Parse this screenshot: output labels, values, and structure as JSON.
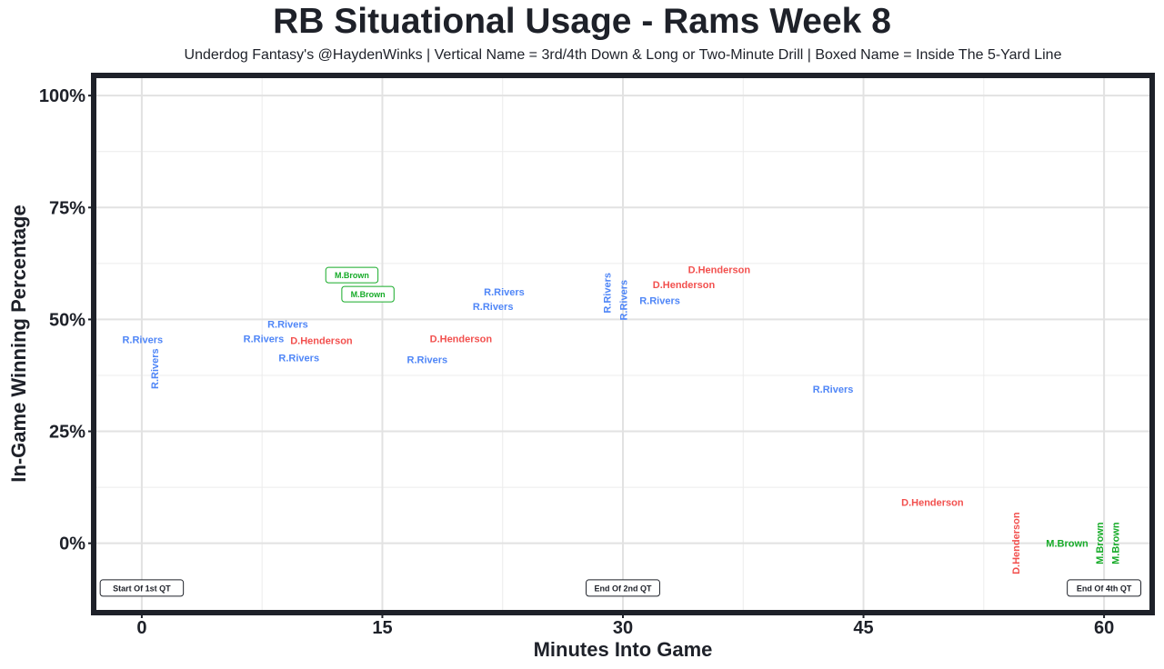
{
  "chart_data": {
    "type": "scatter",
    "title": "RB Situational Usage - Rams Week 8",
    "subtitle": "Underdog Fantasy's @HaydenWinks | Vertical Name = 3rd/4th Down & Long or Two-Minute Drill | Boxed Name = Inside The 5-Yard Line",
    "xlabel": "Minutes Into Game",
    "ylabel": "In-Game Winning Percentage",
    "xlim": [
      -3,
      63
    ],
    "ylim": [
      -15.5,
      104.5
    ],
    "xticks": [
      0,
      15,
      30,
      45,
      60
    ],
    "xtick_labels": [
      "0",
      "15",
      "30",
      "45",
      "60"
    ],
    "yticks": [
      0,
      25,
      50,
      75,
      100
    ],
    "ytick_labels": [
      "0%",
      "25%",
      "50%",
      "75%",
      "100%"
    ],
    "grid": true,
    "colors": {
      "R.Rivers": "#4f86f7",
      "D.Henderson": "#f2504e",
      "M.Brown": "#16ab28"
    },
    "points": [
      {
        "name": "R.Rivers",
        "x": 0.05,
        "y": 45.5,
        "style": "normal"
      },
      {
        "name": "R.Rivers",
        "x": 0.8,
        "y": 40.2,
        "style": "vertical"
      },
      {
        "name": "M.Brown",
        "x": 13.1,
        "y": 60.0,
        "style": "boxed"
      },
      {
        "name": "M.Brown",
        "x": 14.1,
        "y": 59.4,
        "style": "boxed"
      },
      {
        "name": "R.Rivers",
        "x": 7.6,
        "y": 45.7,
        "style": "normal"
      },
      {
        "name": "R.Rivers",
        "x": 9.1,
        "y": 47.7,
        "style": "normal"
      },
      {
        "name": "D.Henderson",
        "x": 11.2,
        "y": 49.0,
        "style": "normal"
      },
      {
        "name": "R.Rivers",
        "x": 9.8,
        "y": 45.1,
        "style": "normal"
      },
      {
        "name": "D.Henderson",
        "x": 19.9,
        "y": 45.7,
        "style": "normal"
      },
      {
        "name": "R.Rivers",
        "x": 17.8,
        "y": 41.0,
        "style": "normal"
      },
      {
        "name": "R.Rivers",
        "x": 21.9,
        "y": 52.9,
        "style": "normal"
      },
      {
        "name": "R.Rivers",
        "x": 22.6,
        "y": 52.5,
        "style": "normal"
      },
      {
        "name": "R.Rivers",
        "x": 29.0,
        "y": 55.9,
        "style": "vertical"
      },
      {
        "name": "R.Rivers",
        "x": 29.7,
        "y": 54.3,
        "style": "vertical"
      },
      {
        "name": "D.Henderson",
        "x": 36.0,
        "y": 61.1,
        "style": "normal"
      },
      {
        "name": "D.Henderson",
        "x": 33.8,
        "y": 57.8,
        "style": "normal"
      },
      {
        "name": "R.Rivers",
        "x": 32.3,
        "y": 55.5,
        "style": "normal"
      },
      {
        "name": "R.Rivers",
        "x": 43.1,
        "y": 34.4,
        "style": "normal"
      },
      {
        "name": "D.Henderson",
        "x": 49.3,
        "y": 9.2,
        "style": "normal"
      },
      {
        "name": "D.Henderson",
        "x": 54.5,
        "y": 0.0,
        "style": "vertical"
      },
      {
        "name": "M.Brown",
        "x": 57.7,
        "y": 0.0,
        "style": "normal"
      },
      {
        "name": "M.Brown",
        "x": 58.0,
        "y": 0.0,
        "style": "vertical"
      },
      {
        "name": "M.Brown",
        "x": 59.0,
        "y": 0.0,
        "style": "vertical"
      }
    ],
    "annotations": [
      {
        "text": "Start Of 1st QT",
        "x": 0,
        "y": -10
      },
      {
        "text": "End Of 2nd QT",
        "x": 30,
        "y": -10
      },
      {
        "text": "End Of 4th QT",
        "x": 60,
        "y": -10
      }
    ]
  }
}
